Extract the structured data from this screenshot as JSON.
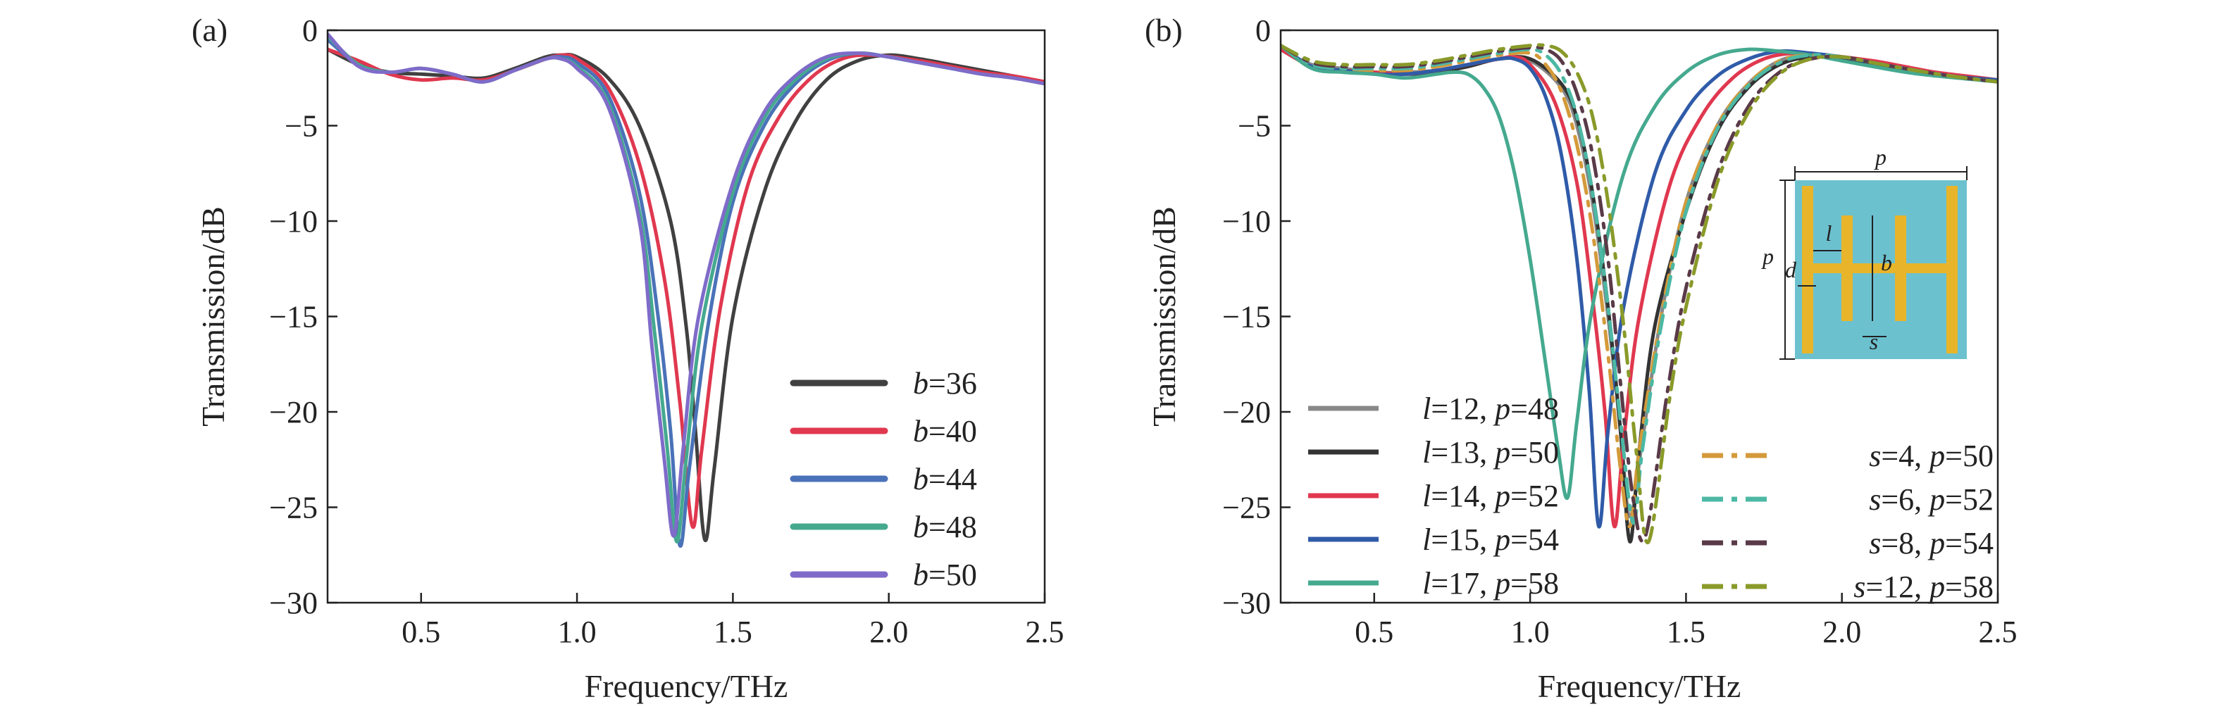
{
  "chart_data": [
    {
      "panel_label": "(a)",
      "type": "line",
      "xlabel": "Frequency/THz",
      "ylabel": "Transmission/dB",
      "xlim": [
        0.2,
        2.5
      ],
      "ylim": [
        -30,
        0
      ],
      "xticks": [
        "0.5",
        "1.0",
        "1.5",
        "2.0",
        "2.5"
      ],
      "yticks": [
        "0",
        "−5",
        "−10",
        "−15",
        "−20",
        "−25",
        "−30"
      ],
      "grid": false,
      "legend_position": "lower-right",
      "series": [
        {
          "name": "b=36",
          "param": "b",
          "value": "=36",
          "color": "#404040",
          "style": "solid",
          "x": [
            0.2,
            0.3,
            0.4,
            0.5,
            0.6,
            0.7,
            0.8,
            0.9,
            0.95,
            1.0,
            1.1,
            1.2,
            1.3,
            1.35,
            1.38,
            1.41,
            1.44,
            1.5,
            1.6,
            1.7,
            1.8,
            1.9,
            2.0,
            2.1,
            2.2,
            2.3,
            2.4,
            2.5
          ],
          "y": [
            -1.0,
            -1.8,
            -2.2,
            -2.3,
            -2.4,
            -2.5,
            -2.0,
            -1.4,
            -1.3,
            -1.4,
            -2.5,
            -5.0,
            -10.0,
            -15.5,
            -21.0,
            -26.7,
            -23.0,
            -15.0,
            -8.5,
            -4.8,
            -2.6,
            -1.6,
            -1.3,
            -1.5,
            -1.8,
            -2.1,
            -2.4,
            -2.7
          ]
        },
        {
          "name": "b=40",
          "param": "b",
          "value": "=40",
          "color": "#e0384f",
          "style": "solid",
          "x": [
            0.2,
            0.3,
            0.4,
            0.5,
            0.6,
            0.7,
            0.8,
            0.9,
            0.95,
            1.0,
            1.1,
            1.2,
            1.28,
            1.33,
            1.37,
            1.4,
            1.46,
            1.55,
            1.65,
            1.75,
            1.85,
            1.95,
            2.1,
            2.2,
            2.3,
            2.4,
            2.5
          ],
          "y": [
            -1.0,
            -1.6,
            -2.3,
            -2.6,
            -2.5,
            -2.6,
            -2.1,
            -1.5,
            -1.3,
            -1.5,
            -3.0,
            -7.0,
            -13.0,
            -19.5,
            -26.0,
            -22.0,
            -14.5,
            -8.0,
            -4.5,
            -2.5,
            -1.5,
            -1.3,
            -1.6,
            -1.9,
            -2.2,
            -2.4,
            -2.7
          ]
        },
        {
          "name": "b=44",
          "param": "b",
          "value": "=44",
          "color": "#4a72b8",
          "style": "solid",
          "x": [
            0.2,
            0.3,
            0.4,
            0.5,
            0.6,
            0.7,
            0.8,
            0.9,
            0.95,
            1.0,
            1.1,
            1.2,
            1.26,
            1.3,
            1.33,
            1.36,
            1.42,
            1.5,
            1.6,
            1.7,
            1.8,
            1.9,
            2.0,
            2.1,
            2.2,
            2.3,
            2.4,
            2.5
          ],
          "y": [
            -0.5,
            -1.8,
            -2.2,
            -2.0,
            -2.3,
            -2.7,
            -2.1,
            -1.5,
            -1.4,
            -1.7,
            -3.4,
            -8.5,
            -15.0,
            -21.0,
            -27.0,
            -23.0,
            -15.5,
            -9.0,
            -5.0,
            -2.8,
            -1.6,
            -1.2,
            -1.4,
            -1.7,
            -2.0,
            -2.3,
            -2.5,
            -2.8
          ]
        },
        {
          "name": "b=48",
          "param": "b",
          "value": "=48",
          "color": "#45a98f",
          "style": "solid",
          "x": [
            0.2,
            0.3,
            0.4,
            0.5,
            0.6,
            0.7,
            0.8,
            0.9,
            0.95,
            1.0,
            1.1,
            1.2,
            1.25,
            1.29,
            1.32,
            1.35,
            1.4,
            1.5,
            1.6,
            1.7,
            1.8,
            1.9,
            2.0,
            2.1,
            2.2,
            2.3,
            2.4,
            2.5
          ],
          "y": [
            -0.3,
            -1.8,
            -2.2,
            -2.0,
            -2.3,
            -2.7,
            -2.1,
            -1.5,
            -1.5,
            -1.9,
            -3.8,
            -9.5,
            -16.0,
            -22.0,
            -26.8,
            -22.5,
            -15.5,
            -8.5,
            -4.6,
            -2.6,
            -1.5,
            -1.2,
            -1.4,
            -1.7,
            -2.0,
            -2.3,
            -2.5,
            -2.8
          ]
        },
        {
          "name": "b=50",
          "param": "b",
          "value": "=50",
          "color": "#7f6bc9",
          "style": "solid",
          "x": [
            0.2,
            0.3,
            0.4,
            0.5,
            0.6,
            0.7,
            0.8,
            0.9,
            0.95,
            1.0,
            1.1,
            1.2,
            1.24,
            1.28,
            1.31,
            1.34,
            1.39,
            1.5,
            1.6,
            1.7,
            1.8,
            1.9,
            2.0,
            2.1,
            2.2,
            2.3,
            2.4,
            2.5
          ],
          "y": [
            -0.2,
            -1.9,
            -2.2,
            -2.0,
            -2.3,
            -2.7,
            -2.1,
            -1.5,
            -1.5,
            -2.0,
            -4.0,
            -10.0,
            -16.5,
            -22.5,
            -26.5,
            -22.0,
            -15.0,
            -8.0,
            -4.3,
            -2.4,
            -1.4,
            -1.2,
            -1.4,
            -1.7,
            -2.0,
            -2.3,
            -2.5,
            -2.8
          ]
        }
      ]
    },
    {
      "panel_label": "(b)",
      "type": "line",
      "xlabel": "Frequency/THz",
      "ylabel": "Transmission/dB",
      "xlim": [
        0.2,
        2.5
      ],
      "ylim": [
        -30,
        0
      ],
      "xticks": [
        "0.5",
        "1.0",
        "1.5",
        "2.0",
        "2.5"
      ],
      "yticks": [
        "0",
        "−5",
        "−10",
        "−15",
        "−20",
        "−25",
        "−30"
      ],
      "grid": false,
      "legend_position": "lower-left and lower-right",
      "series": [
        {
          "name": "l=12, p=48",
          "param": "l",
          "value": "=12, ",
          "param2": "p",
          "value2": "=48",
          "color": "#888888",
          "style": "solid",
          "x": [
            0.2,
            0.3,
            0.4,
            0.5,
            0.6,
            0.7,
            0.8,
            0.9,
            1.0,
            1.1,
            1.15,
            1.2,
            1.25,
            1.29,
            1.32,
            1.36,
            1.42,
            1.5,
            1.6,
            1.7,
            1.8,
            1.9,
            2.0,
            2.1,
            2.2,
            2.3,
            2.4,
            2.5
          ],
          "y": [
            -1.0,
            -1.8,
            -2.0,
            -2.2,
            -2.2,
            -2.1,
            -1.8,
            -1.5,
            -1.6,
            -3.0,
            -5.0,
            -9.0,
            -15.0,
            -21.0,
            -25.5,
            -21.5,
            -15.0,
            -9.0,
            -5.0,
            -2.8,
            -1.6,
            -1.3,
            -1.5,
            -1.8,
            -2.1,
            -2.3,
            -2.5,
            -2.7
          ]
        },
        {
          "name": "l=13, p=50",
          "param": "l",
          "value": "=13, ",
          "param2": "p",
          "value2": "=50",
          "color": "#333333",
          "style": "solid",
          "x": [
            0.2,
            0.3,
            0.4,
            0.5,
            0.6,
            0.7,
            0.8,
            0.9,
            1.0,
            1.1,
            1.15,
            1.2,
            1.25,
            1.29,
            1.32,
            1.35,
            1.4,
            1.5,
            1.6,
            1.7,
            1.8,
            1.9,
            2.0,
            2.1,
            2.2,
            2.3,
            2.4,
            2.5
          ],
          "y": [
            -1.0,
            -1.9,
            -2.1,
            -2.2,
            -2.3,
            -2.2,
            -1.9,
            -1.5,
            -1.5,
            -2.8,
            -4.6,
            -8.5,
            -14.5,
            -21.0,
            -26.8,
            -22.0,
            -15.5,
            -9.5,
            -5.3,
            -3.0,
            -1.8,
            -1.4,
            -1.5,
            -1.8,
            -2.1,
            -2.3,
            -2.5,
            -2.7
          ]
        },
        {
          "name": "l=14, p=52",
          "param": "l",
          "value": "=14, ",
          "param2": "p",
          "value2": "=52",
          "color": "#e0384f",
          "style": "solid",
          "x": [
            0.2,
            0.3,
            0.4,
            0.5,
            0.6,
            0.7,
            0.8,
            0.9,
            0.95,
            1.0,
            1.08,
            1.15,
            1.2,
            1.24,
            1.27,
            1.3,
            1.35,
            1.45,
            1.55,
            1.65,
            1.75,
            1.85,
            1.95,
            2.1,
            2.2,
            2.3,
            2.4,
            2.5
          ],
          "y": [
            -1.0,
            -1.9,
            -2.1,
            -2.2,
            -2.3,
            -2.1,
            -1.8,
            -1.5,
            -1.4,
            -1.8,
            -3.8,
            -8.0,
            -14.0,
            -20.0,
            -26.0,
            -21.5,
            -15.0,
            -8.0,
            -4.5,
            -2.5,
            -1.5,
            -1.2,
            -1.3,
            -1.6,
            -1.9,
            -2.2,
            -2.4,
            -2.6
          ]
        },
        {
          "name": "l=15, p=54",
          "param": "l",
          "value": "=15, ",
          "param2": "p",
          "value2": "=54",
          "color": "#2f5ba8",
          "style": "solid",
          "x": [
            0.2,
            0.3,
            0.4,
            0.5,
            0.6,
            0.7,
            0.8,
            0.9,
            0.95,
            1.0,
            1.05,
            1.1,
            1.15,
            1.19,
            1.22,
            1.25,
            1.3,
            1.4,
            1.5,
            1.6,
            1.7,
            1.8,
            1.9,
            2.0,
            2.1,
            2.2,
            2.35,
            2.5
          ],
          "y": [
            -0.8,
            -1.9,
            -2.1,
            -2.3,
            -2.3,
            -2.1,
            -1.8,
            -1.5,
            -1.5,
            -2.0,
            -3.5,
            -6.5,
            -12.0,
            -19.0,
            -26.0,
            -21.0,
            -14.5,
            -7.5,
            -4.2,
            -2.4,
            -1.5,
            -1.1,
            -1.2,
            -1.4,
            -1.7,
            -2.0,
            -2.4,
            -2.6
          ]
        },
        {
          "name": "l=17, p=58",
          "param": "l",
          "value": "=17, ",
          "param2": "p",
          "value2": "=58",
          "color": "#45a98f",
          "style": "solid",
          "x": [
            0.2,
            0.3,
            0.4,
            0.5,
            0.6,
            0.7,
            0.75,
            0.8,
            0.85,
            0.9,
            0.95,
            1.0,
            1.05,
            1.09,
            1.12,
            1.15,
            1.2,
            1.3,
            1.4,
            1.5,
            1.6,
            1.7,
            1.8,
            1.9,
            2.0,
            2.1,
            2.25,
            2.5
          ],
          "y": [
            -0.8,
            -2.0,
            -2.2,
            -2.3,
            -2.5,
            -2.3,
            -2.2,
            -2.3,
            -3.0,
            -4.5,
            -7.5,
            -12.0,
            -17.5,
            -22.0,
            -24.5,
            -20.5,
            -14.5,
            -7.5,
            -4.0,
            -2.2,
            -1.3,
            -1.0,
            -1.1,
            -1.3,
            -1.6,
            -1.9,
            -2.3,
            -2.7
          ]
        },
        {
          "name": "s=4, p=50",
          "param": "s",
          "value": "=4, ",
          "param2": "p",
          "value2": "=50",
          "color": "#d49a3a",
          "style": "dashdot",
          "x": [
            0.2,
            0.3,
            0.4,
            0.5,
            0.6,
            0.7,
            0.8,
            0.9,
            1.0,
            1.05,
            1.1,
            1.15,
            1.2,
            1.25,
            1.29,
            1.32,
            1.35,
            1.42,
            1.5,
            1.6,
            1.7,
            1.8,
            1.9,
            2.0,
            2.1,
            2.2,
            2.35,
            2.5
          ],
          "y": [
            -0.8,
            -1.8,
            -2.0,
            -2.1,
            -2.1,
            -1.9,
            -1.6,
            -1.3,
            -1.2,
            -1.8,
            -3.2,
            -6.0,
            -10.5,
            -17.0,
            -23.0,
            -26.0,
            -22.0,
            -15.0,
            -9.0,
            -5.0,
            -2.8,
            -1.6,
            -1.3,
            -1.4,
            -1.7,
            -2.0,
            -2.4,
            -2.7
          ]
        },
        {
          "name": "s=6, p=52",
          "param": "s",
          "value": "=6, ",
          "param2": "p",
          "value2": "=52",
          "color": "#4cb8a4",
          "style": "dashdot",
          "x": [
            0.2,
            0.3,
            0.4,
            0.5,
            0.6,
            0.7,
            0.8,
            0.9,
            1.0,
            1.05,
            1.1,
            1.15,
            1.2,
            1.25,
            1.29,
            1.33,
            1.36,
            1.42,
            1.5,
            1.6,
            1.7,
            1.8,
            1.9,
            2.0,
            2.1,
            2.2,
            2.35,
            2.5
          ],
          "y": [
            -0.8,
            -1.8,
            -2.0,
            -2.0,
            -2.0,
            -1.8,
            -1.5,
            -1.2,
            -1.0,
            -1.3,
            -2.3,
            -4.5,
            -8.5,
            -14.5,
            -20.5,
            -25.8,
            -22.0,
            -15.5,
            -9.5,
            -5.2,
            -2.9,
            -1.7,
            -1.3,
            -1.4,
            -1.7,
            -2.0,
            -2.4,
            -2.7
          ]
        },
        {
          "name": "s=8, p=54",
          "param": "s",
          "value": "=8, ",
          "param2": "p",
          "value2": "=54",
          "color": "#5a3a48",
          "style": "dashdot",
          "x": [
            0.2,
            0.3,
            0.4,
            0.5,
            0.6,
            0.7,
            0.8,
            0.9,
            1.0,
            1.05,
            1.1,
            1.15,
            1.2,
            1.25,
            1.29,
            1.33,
            1.37,
            1.44,
            1.5,
            1.6,
            1.7,
            1.8,
            1.9,
            2.0,
            2.1,
            2.2,
            2.35,
            2.5
          ],
          "y": [
            -0.8,
            -1.7,
            -1.9,
            -1.9,
            -1.9,
            -1.7,
            -1.4,
            -1.1,
            -0.9,
            -1.0,
            -1.6,
            -3.3,
            -6.5,
            -12.0,
            -18.5,
            -24.5,
            -26.5,
            -19.0,
            -13.5,
            -7.5,
            -4.0,
            -2.2,
            -1.5,
            -1.4,
            -1.7,
            -2.0,
            -2.4,
            -2.7
          ]
        },
        {
          "name": "s=12, p=58",
          "param": "s",
          "value": "=12, ",
          "param2": "p",
          "value2": "=58",
          "color": "#8a9a2a",
          "style": "dashdot",
          "x": [
            0.2,
            0.3,
            0.4,
            0.5,
            0.6,
            0.7,
            0.8,
            0.9,
            1.0,
            1.05,
            1.1,
            1.15,
            1.2,
            1.25,
            1.3,
            1.34,
            1.38,
            1.45,
            1.5,
            1.6,
            1.7,
            1.8,
            1.9,
            2.0,
            2.1,
            2.2,
            2.35,
            2.5
          ],
          "y": [
            -0.8,
            -1.6,
            -1.8,
            -1.8,
            -1.8,
            -1.6,
            -1.3,
            -1.0,
            -0.8,
            -0.8,
            -1.1,
            -2.2,
            -4.5,
            -9.0,
            -15.5,
            -22.0,
            -26.8,
            -19.0,
            -14.5,
            -8.0,
            -4.3,
            -2.3,
            -1.5,
            -1.4,
            -1.7,
            -2.0,
            -2.4,
            -2.7
          ]
        }
      ],
      "inset": {
        "labels": [
          "p",
          "p",
          "l",
          "b",
          "d",
          "s"
        ],
        "bg_color": "#6cc1cf",
        "bar_color": "#e8b52a"
      }
    }
  ]
}
